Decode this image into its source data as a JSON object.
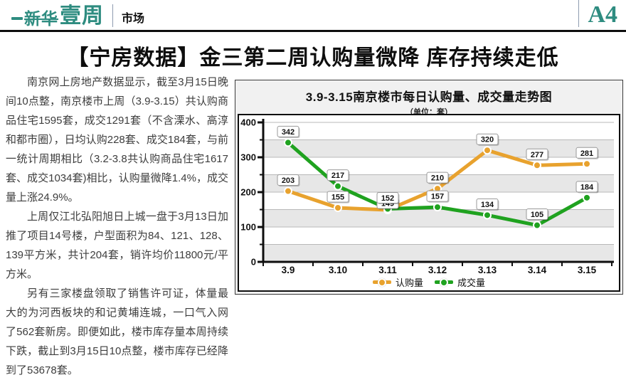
{
  "masthead": {
    "logo_prefix": "新华",
    "logo_main": "壹周",
    "section": "市场",
    "page_number": "A4",
    "brand_color": "#2E8C80"
  },
  "headline": "【宁房数据】金三第二周认购量微降 库存持续走低",
  "article": {
    "paragraphs": [
      "南京网上房地产数据显示，截至3月15日晚间10点整，南京楼市上周（3.9-3.15）共认购商品住宅1595套，成交1291套（不含溧水、高淳和都市圈），日均认购228套、成交184套，与前一统计周期相比（3.2-3.8共认购商品住宅1617套、成交1034套)相比，认购量微降1.4%，成交量上涨24.9%。",
      "上周仅江北弘阳旭日上城一盘于3月13日加推了项目14号楼，户型面积为84、121、128、139平方米，共计204套，销许均价11800元/平方米。",
      "另有三家楼盘领取了销售许可证，体量最大的为河西板块的和记黄埔连城，一口气入网了562套新房。即便如此，楼市库存量本周持续下跌，截止到3月15日10点整，楼市库存已经降到了53678套。"
    ]
  },
  "chart_data": {
    "type": "line",
    "title": "3.9-3.15南京楼市每日认购量、成交量走势图",
    "subtitle": "（单位：套）",
    "categories": [
      "3.9",
      "3.10",
      "3.11",
      "3.12",
      "3.13",
      "3.14",
      "3.15"
    ],
    "series": [
      {
        "name": "认购量",
        "color": "#E8A22E",
        "values": [
          203,
          155,
          149,
          210,
          320,
          277,
          281
        ],
        "label_dy_overrides": {
          "2": 6
        }
      },
      {
        "name": "成交量",
        "color": "#1FA21F",
        "values": [
          342,
          217,
          152,
          157,
          134,
          105,
          184
        ],
        "label_dy_overrides": {}
      }
    ],
    "ylim": [
      0,
      400
    ],
    "y_major_ticks": [
      0,
      100,
      200,
      300,
      400
    ],
    "y_minor_step": 50,
    "grid": true,
    "legend_position": "bottom",
    "colors": {
      "band": "#e7e7e7",
      "grid": "#b8b8b8",
      "axis": "#0e0e0e",
      "label_box_border": "#999999",
      "label_text": "#111111"
    }
  }
}
